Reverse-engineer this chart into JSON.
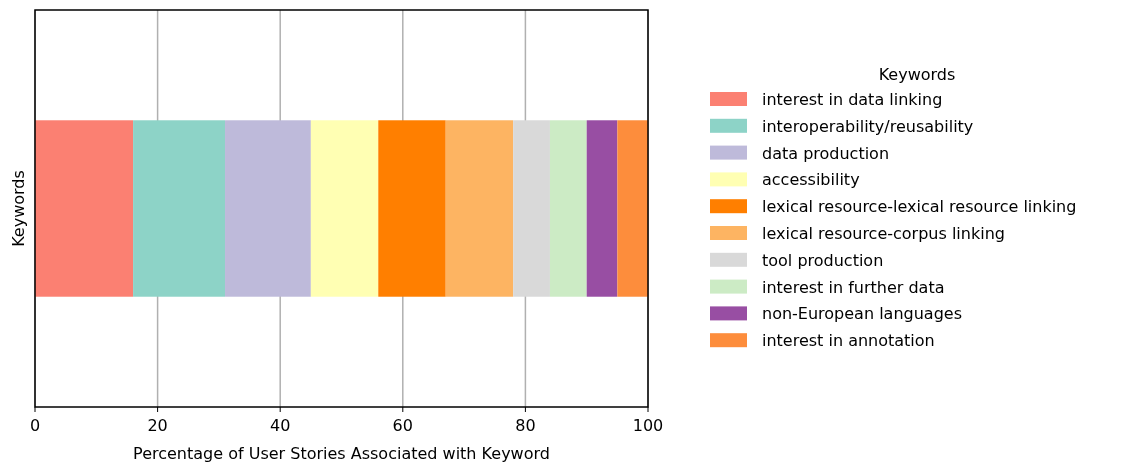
{
  "chart_data": {
    "type": "bar",
    "orientation": "horizontal",
    "stacked": true,
    "categories": [
      null
    ],
    "xlabel": "Percentage of User Stories Associated with Keyword",
    "ylabel": "Keywords",
    "legend_title": "Keywords",
    "legend": "right",
    "grid": "x",
    "xlim": [
      0,
      100
    ],
    "xticks": [
      0,
      20,
      40,
      60,
      80,
      100
    ],
    "series": [
      {
        "name": "interest in data linking",
        "color": "#fb8072",
        "values": [
          16
        ]
      },
      {
        "name": "interoperability/reusability",
        "color": "#8dd3c7",
        "values": [
          15
        ]
      },
      {
        "name": "data production",
        "color": "#bebada",
        "values": [
          14
        ]
      },
      {
        "name": "accessibility",
        "color": "#ffffb3",
        "values": [
          11
        ]
      },
      {
        "name": "lexical resource-lexical resource linking",
        "color": "#ff7f00",
        "values": [
          11
        ]
      },
      {
        "name": "lexical resource-corpus linking",
        "color": "#fdb462",
        "values": [
          11
        ]
      },
      {
        "name": "tool production",
        "color": "#d9d9d9",
        "values": [
          6
        ]
      },
      {
        "name": "interest in further data",
        "color": "#ccebc5",
        "values": [
          6
        ]
      },
      {
        "name": "non-European languages",
        "color": "#984ea3",
        "values": [
          5
        ]
      },
      {
        "name": "interest in annotation",
        "color": "#fd8d3c",
        "values": [
          5
        ]
      }
    ]
  }
}
